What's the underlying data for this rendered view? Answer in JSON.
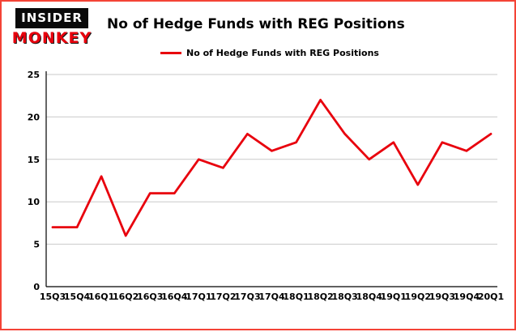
{
  "logo": {
    "top": "INSIDER",
    "bottom": "MONKEY"
  },
  "header": {
    "title": "No of Hedge Funds with REG Positions"
  },
  "legend": {
    "label": "No of Hedge Funds with REG Positions"
  },
  "colors": {
    "line": "#e8000d",
    "frame_border": "#f44336",
    "grid": "#c9c9c9",
    "axis": "#000000"
  },
  "chart_data": {
    "type": "line",
    "title": "No of Hedge Funds with REG Positions",
    "categories": [
      "15Q3",
      "15Q4",
      "16Q1",
      "16Q2",
      "16Q3",
      "16Q4",
      "17Q1",
      "17Q2",
      "17Q3",
      "17Q4",
      "18Q1",
      "18Q2",
      "18Q3",
      "18Q4",
      "19Q1",
      "19Q2",
      "19Q3",
      "19Q4",
      "20Q1"
    ],
    "values": [
      7,
      7,
      13,
      6,
      11,
      11,
      15,
      14,
      18,
      16,
      17,
      22,
      18,
      15,
      17,
      12,
      17,
      16,
      18
    ],
    "xlabel": "",
    "ylabel": "",
    "ylim": [
      0,
      25
    ],
    "yticks": [
      0,
      5,
      10,
      15,
      20,
      25
    ],
    "grid": true,
    "legend_position": "top-left"
  }
}
